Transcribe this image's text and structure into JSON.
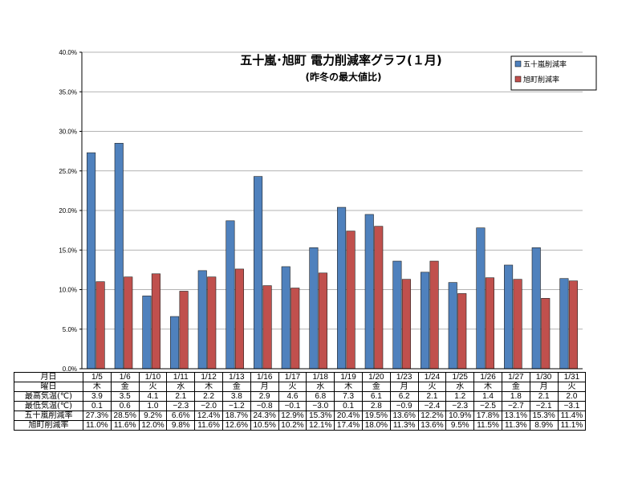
{
  "chart_data": {
    "type": "bar",
    "title": "五十嵐･旭町  電力削減率グラフ(１月)",
    "subtitle": "(昨冬の最大値比)",
    "y_ticks": [
      "0.0%",
      "5.0%",
      "10.0%",
      "15.0%",
      "20.0%",
      "25.0%",
      "30.0%",
      "35.0%",
      "40.0%"
    ],
    "ylim": [
      0,
      40
    ],
    "grid": true,
    "legend_position": "top-right",
    "categories": [
      "1/5",
      "1/6",
      "1/10",
      "1/11",
      "1/12",
      "1/13",
      "1/16",
      "1/17",
      "1/18",
      "1/19",
      "1/20",
      "1/23",
      "1/24",
      "1/25",
      "1/26",
      "1/27",
      "1/30",
      "1/31"
    ],
    "series": [
      {
        "name": "五十嵐削減率",
        "color": "#4F81BD",
        "values": [
          27.3,
          28.5,
          9.2,
          6.6,
          12.4,
          18.7,
          24.3,
          12.9,
          15.3,
          20.4,
          19.5,
          13.6,
          12.2,
          10.9,
          17.8,
          13.1,
          15.3,
          11.4
        ]
      },
      {
        "name": "旭町削減率",
        "color": "#C0504D",
        "values": [
          11.0,
          11.6,
          12.0,
          9.8,
          11.6,
          12.6,
          10.5,
          10.2,
          12.1,
          17.4,
          18.0,
          11.3,
          13.6,
          9.5,
          11.5,
          11.3,
          8.9,
          11.1
        ]
      }
    ]
  },
  "table": {
    "rows": [
      {
        "label": "月日",
        "cells": [
          "1/5",
          "1/6",
          "1/10",
          "1/11",
          "1/12",
          "1/13",
          "1/16",
          "1/17",
          "1/18",
          "1/19",
          "1/20",
          "1/23",
          "1/24",
          "1/25",
          "1/26",
          "1/27",
          "1/30",
          "1/31"
        ]
      },
      {
        "label": "曜日",
        "cells": [
          "木",
          "金",
          "火",
          "水",
          "木",
          "金",
          "月",
          "火",
          "水",
          "木",
          "金",
          "月",
          "火",
          "水",
          "木",
          "金",
          "月",
          "火"
        ]
      },
      {
        "label": "最高気温(℃)",
        "cells": [
          "3.9",
          "3.5",
          "4.1",
          "2.1",
          "2.2",
          "3.8",
          "2.9",
          "4.6",
          "6.8",
          "7.3",
          "6.1",
          "6.2",
          "2.1",
          "1.2",
          "1.4",
          "1.8",
          "2.1",
          "2.0"
        ]
      },
      {
        "label": "最低気温(℃)",
        "cells": [
          "0.1",
          "0.6",
          "1.0",
          "−2.3",
          "−2.0",
          "−1.2",
          "−0.8",
          "−0.1",
          "−3.0",
          "0.1",
          "2.8",
          "−0.9",
          "−2.4",
          "−2.3",
          "−2.5",
          "−2.7",
          "−2.1",
          "−3.1"
        ]
      },
      {
        "label": "五十嵐削減率",
        "cells": [
          "27.3%",
          "28.5%",
          "9.2%",
          "6.6%",
          "12.4%",
          "18.7%",
          "24.3%",
          "12.9%",
          "15.3%",
          "20.4%",
          "19.5%",
          "13.6%",
          "12.2%",
          "10.9%",
          "17.8%",
          "13.1%",
          "15.3%",
          "11.4%"
        ]
      },
      {
        "label": "旭町削減率",
        "cells": [
          "11.0%",
          "11.6%",
          "12.0%",
          "9.8%",
          "11.6%",
          "12.6%",
          "10.5%",
          "10.2%",
          "12.1%",
          "17.4%",
          "18.0%",
          "11.3%",
          "13.6%",
          "9.5%",
          "11.5%",
          "11.3%",
          "8.9%",
          "11.1%"
        ]
      }
    ]
  }
}
